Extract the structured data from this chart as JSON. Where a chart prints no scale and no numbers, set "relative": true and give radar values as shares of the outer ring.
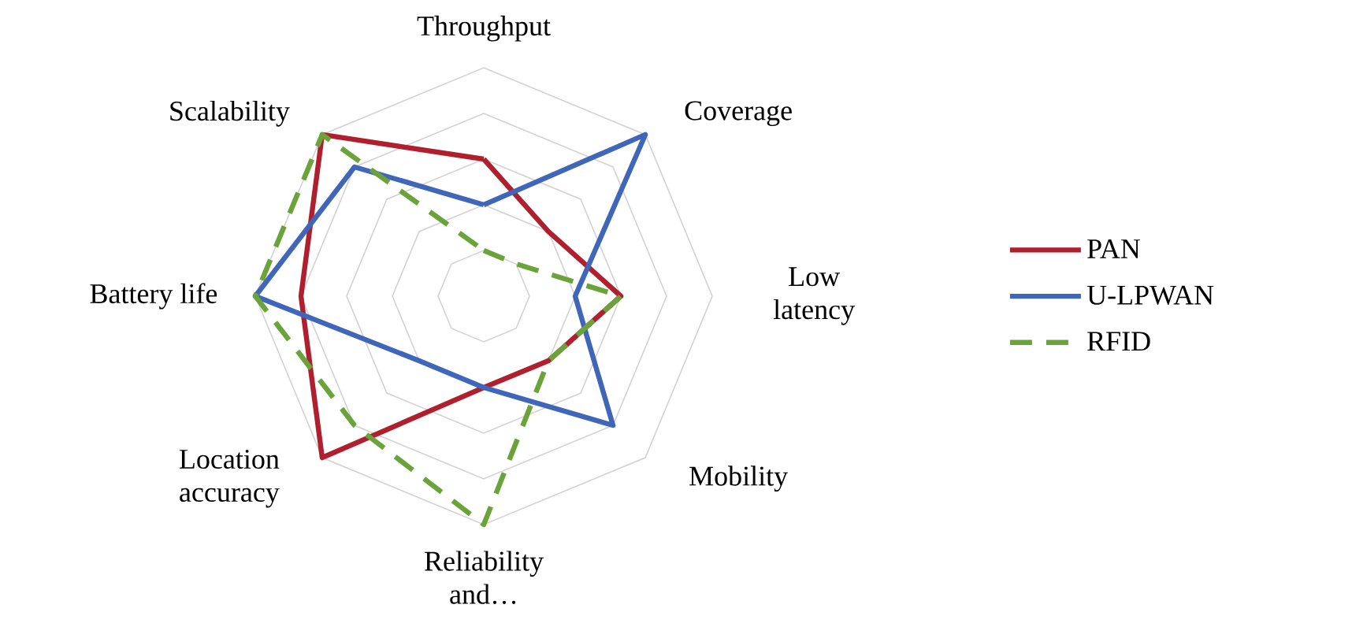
{
  "chart_data": {
    "type": "radar",
    "relative": true,
    "grid": true,
    "legend": "right",
    "categories": [
      "Throughput",
      "Coverage",
      "Low latency",
      "Mobility",
      "Reliability and…",
      "Location accuracy",
      "Battery life",
      "Scalability"
    ],
    "series": [
      {
        "name": "PAN",
        "color": "#b01f2e",
        "line_style": "solid",
        "values": [
          0.6,
          0.4,
          0.6,
          0.4,
          0.4,
          1,
          0.8,
          1
        ]
      },
      {
        "name": "U-LPWAN",
        "color": "#3f66b8",
        "line_style": "solid",
        "values": [
          0.4,
          1,
          0.4,
          0.8,
          0.4,
          0.4,
          1,
          0.8
        ]
      },
      {
        "name": "RFID",
        "color": "#6aa33a",
        "line_style": "dashed",
        "values": [
          0.2,
          0.2,
          0.6,
          0.4,
          1,
          0.8,
          1,
          1
        ]
      }
    ]
  }
}
